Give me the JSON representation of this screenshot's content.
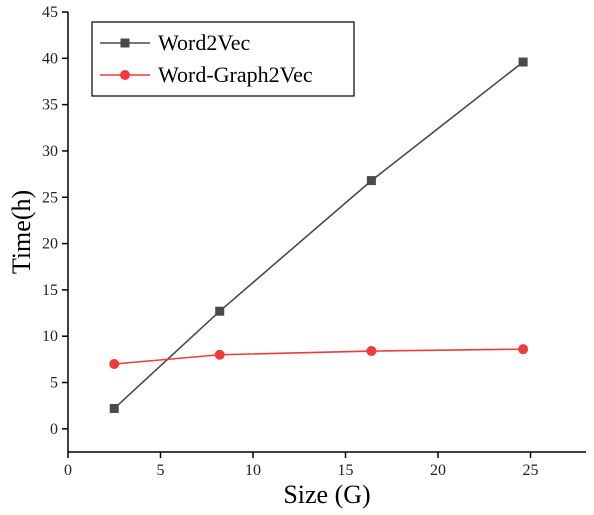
{
  "chart_data": {
    "type": "line",
    "xlabel": "Size (G)",
    "ylabel": "Time(h)",
    "xlim": [
      0,
      28
    ],
    "ylim": [
      -2.5,
      45
    ],
    "xticks": [
      0,
      5,
      10,
      15,
      20,
      25
    ],
    "yticks": [
      0,
      5,
      10,
      15,
      20,
      25,
      30,
      35,
      40,
      45
    ],
    "grid": false,
    "legend_position": "top-left",
    "series": [
      {
        "name": "Word2Vec",
        "color": "#4a4a4a",
        "marker": "square",
        "x": [
          2.5,
          8.2,
          16.4,
          24.6
        ],
        "values": [
          2.2,
          12.7,
          26.8,
          39.6
        ]
      },
      {
        "name": "Word-Graph2Vec",
        "color": "#ee3b3b",
        "marker": "circle",
        "x": [
          2.5,
          8.2,
          16.4,
          24.6
        ],
        "values": [
          7.0,
          8.0,
          8.4,
          8.6
        ]
      }
    ]
  }
}
